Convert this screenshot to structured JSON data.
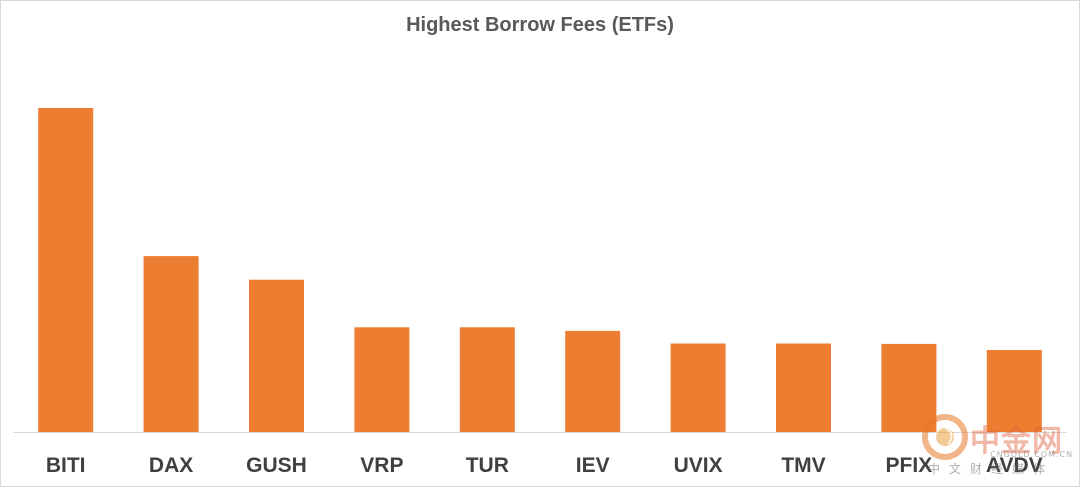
{
  "chart_data": {
    "type": "bar",
    "title": "Highest Borrow Fees (ETFs)",
    "categories": [
      "BITI",
      "DAX",
      "GUSH",
      "VRP",
      "TUR",
      "IEV",
      "UVIX",
      "TMV",
      "PFIX",
      "AVDV"
    ],
    "values": [
      100,
      54.3,
      47,
      32.3,
      32.3,
      31.2,
      27.3,
      27.3,
      27.2,
      25.3
    ],
    "ylim": [
      0,
      105
    ],
    "xlabel": "",
    "ylabel": "",
    "grid": false,
    "legend": "none",
    "bar_color": "#ED7D31"
  },
  "watermark": {
    "name": "中金网",
    "url": "CNGOLD.COM.CN",
    "subtitle": "中文财经媒体",
    "icon": "cngold-logo-icon"
  }
}
